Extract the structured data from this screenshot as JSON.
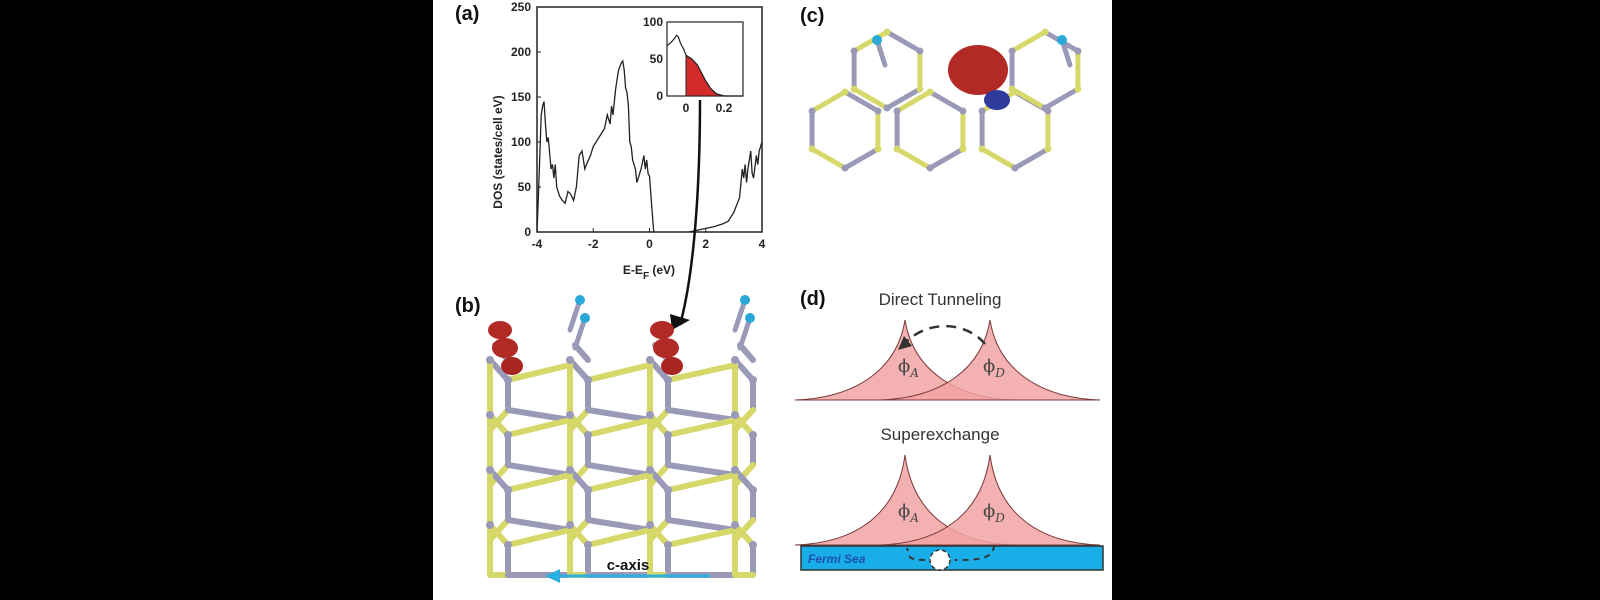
{
  "panels": {
    "a": "(a)",
    "b": "(b)",
    "c": "(c)",
    "d": "(d)"
  },
  "chart_data": {
    "type": "line",
    "xlabel": "E-E",
    "xlabel_sub": "F",
    "xlabel_unit": " (eV)",
    "ylabel": "DOS (states/cell eV)",
    "xlim": [
      -4,
      4
    ],
    "ylim": [
      0,
      250
    ],
    "xticks": [
      "-4",
      "-2",
      "0",
      "2",
      "4"
    ],
    "yticks": [
      "0",
      "50",
      "100",
      "150",
      "200",
      "250"
    ],
    "series": [
      {
        "points": [
          [
            -4,
            0
          ],
          [
            -3.95,
            40
          ],
          [
            -3.85,
            130
          ],
          [
            -3.8,
            140
          ],
          [
            -3.75,
            145
          ],
          [
            -3.7,
            120
          ],
          [
            -3.65,
            100
          ],
          [
            -3.6,
            105
          ],
          [
            -3.5,
            70
          ],
          [
            -3.45,
            75
          ],
          [
            -3.4,
            60
          ],
          [
            -3.35,
            75
          ],
          [
            -3.3,
            50
          ],
          [
            -3.2,
            40
          ],
          [
            -3.1,
            35
          ],
          [
            -3.0,
            32
          ],
          [
            -2.9,
            45
          ],
          [
            -2.8,
            42
          ],
          [
            -2.7,
            35
          ],
          [
            -2.6,
            50
          ],
          [
            -2.5,
            85
          ],
          [
            -2.4,
            90
          ],
          [
            -2.3,
            70
          ],
          [
            -2.2,
            78
          ],
          [
            -2.1,
            85
          ],
          [
            -2.0,
            95
          ],
          [
            -1.9,
            100
          ],
          [
            -1.8,
            105
          ],
          [
            -1.7,
            110
          ],
          [
            -1.6,
            115
          ],
          [
            -1.5,
            130
          ],
          [
            -1.45,
            125
          ],
          [
            -1.4,
            120
          ],
          [
            -1.35,
            140
          ],
          [
            -1.3,
            130
          ],
          [
            -1.2,
            160
          ],
          [
            -1.1,
            180
          ],
          [
            -1.0,
            188
          ],
          [
            -0.95,
            190
          ],
          [
            -0.9,
            180
          ],
          [
            -0.85,
            160
          ],
          [
            -0.8,
            155
          ],
          [
            -0.75,
            140
          ],
          [
            -0.7,
            100
          ],
          [
            -0.65,
            95
          ],
          [
            -0.6,
            80
          ],
          [
            -0.5,
            70
          ],
          [
            -0.45,
            55
          ],
          [
            -0.4,
            60
          ],
          [
            -0.3,
            70
          ],
          [
            -0.2,
            85
          ],
          [
            -0.15,
            70
          ],
          [
            -0.1,
            80
          ],
          [
            -0.05,
            65
          ],
          [
            0.0,
            62
          ],
          [
            0.1,
            20
          ],
          [
            0.15,
            0
          ]
        ]
      },
      {
        "points": [
          [
            1.4,
            0
          ],
          [
            1.7,
            2
          ],
          [
            2.0,
            4
          ],
          [
            2.3,
            6
          ],
          [
            2.6,
            9
          ],
          [
            2.8,
            12
          ],
          [
            3.0,
            22
          ],
          [
            3.1,
            30
          ],
          [
            3.2,
            38
          ],
          [
            3.3,
            70
          ],
          [
            3.35,
            60
          ],
          [
            3.4,
            75
          ],
          [
            3.45,
            55
          ],
          [
            3.5,
            70
          ],
          [
            3.6,
            90
          ],
          [
            3.65,
            65
          ],
          [
            3.7,
            60
          ],
          [
            3.8,
            85
          ],
          [
            3.85,
            75
          ],
          [
            3.9,
            90
          ],
          [
            4.0,
            100
          ]
        ]
      }
    ],
    "inset": {
      "xlim": [
        -0.1,
        0.3
      ],
      "ylim": [
        0,
        100
      ],
      "xticks": [
        "0",
        "0.2"
      ],
      "yticks": [
        "0",
        "50",
        "100"
      ],
      "points": [
        [
          -0.1,
          68
        ],
        [
          -0.08,
          72
        ],
        [
          -0.06,
          78
        ],
        [
          -0.05,
          82
        ],
        [
          -0.04,
          80
        ],
        [
          -0.03,
          72
        ],
        [
          -0.01,
          62
        ],
        [
          0,
          55
        ],
        [
          0.03,
          50
        ],
        [
          0.06,
          42
        ],
        [
          0.08,
          32
        ],
        [
          0.1,
          22
        ],
        [
          0.13,
          10
        ],
        [
          0.16,
          3
        ],
        [
          0.2,
          0
        ],
        [
          0.3,
          0
        ]
      ],
      "fill_range": [
        0,
        0.2
      ],
      "fill_color": "#d42a2a"
    }
  },
  "panel_b": {
    "axis_label": "c-axis",
    "axis_color": "#2ab0e0"
  },
  "panel_d": {
    "top_title": "Direct Tunneling",
    "bottom_title": "Superexchange",
    "phi_a": "ϕ",
    "phi_a_sub": "A",
    "phi_d": "ϕ",
    "phi_d_sub": "D",
    "fermi_sea": "Fermi Sea",
    "peak_color": "#f2a3a3",
    "sea_color": "#1aaee8"
  }
}
